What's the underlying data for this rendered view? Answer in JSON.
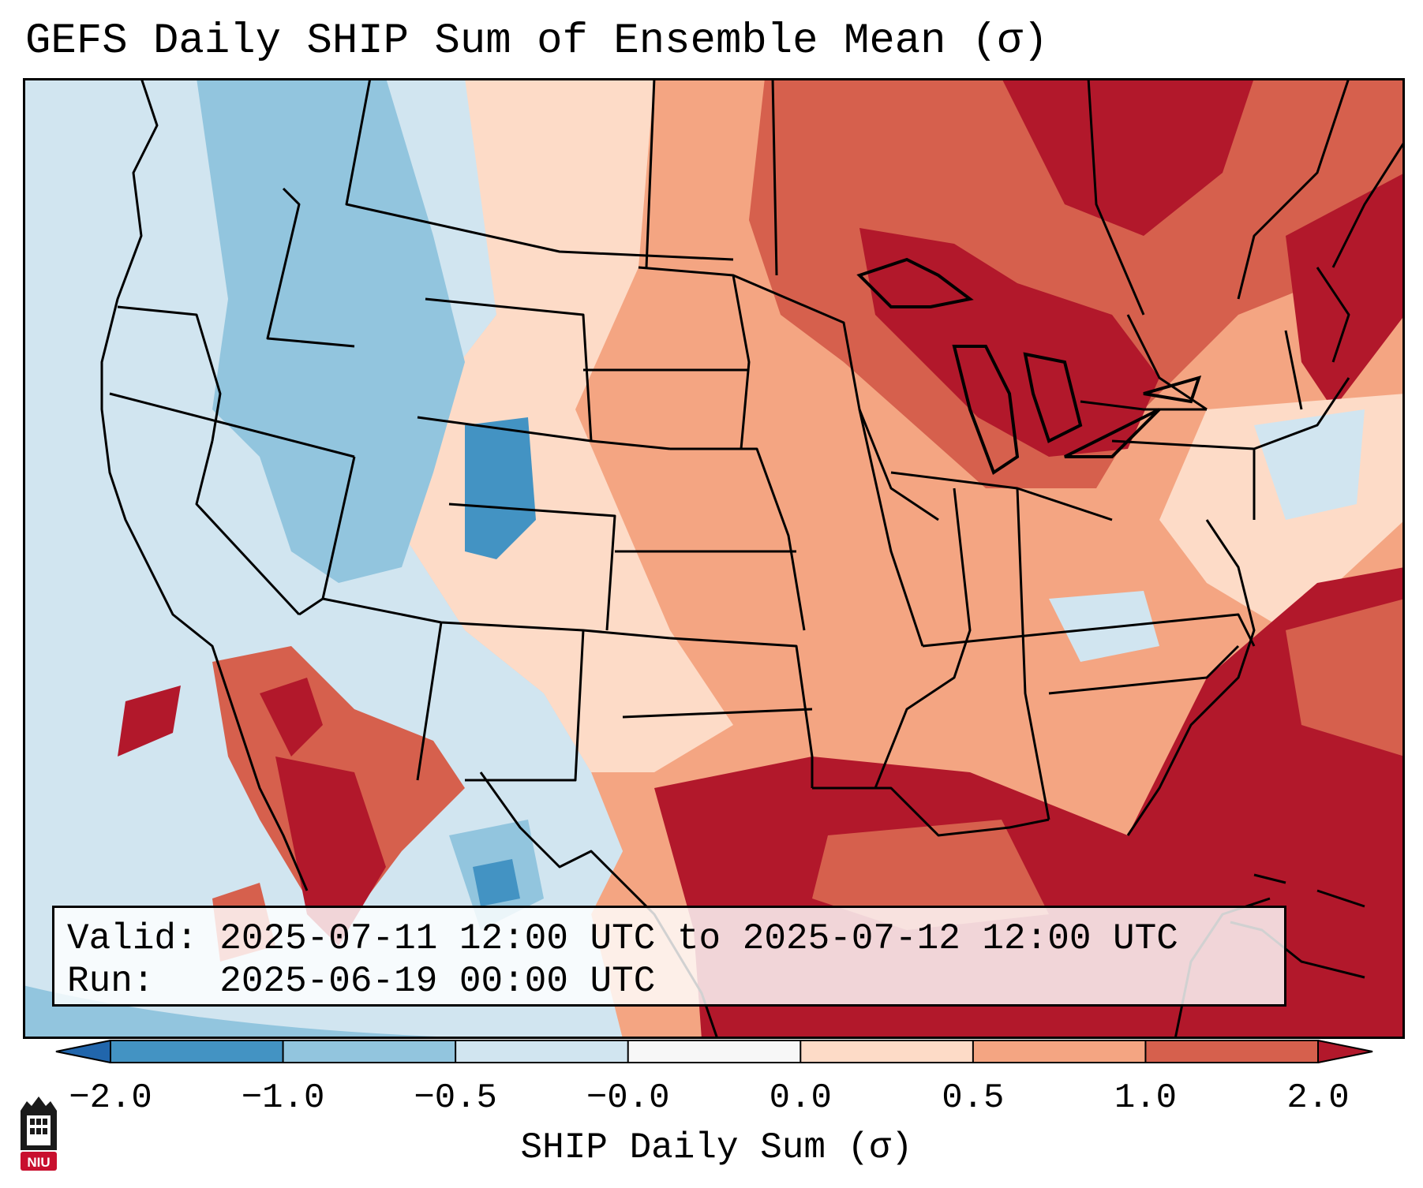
{
  "title": "GEFS Daily SHIP Sum of Ensemble Mean (σ)",
  "info": {
    "valid_label": "Valid:",
    "valid_value": "2025-07-11 12:00 UTC to 2025-07-12 12:00 UTC",
    "run_label": "Run:",
    "run_value": "2025-06-19 00:00 UTC"
  },
  "colorbar": {
    "label": "SHIP Daily Sum (σ)",
    "ticks": [
      "−2.0",
      "−1.0",
      "−0.5",
      "−0.0",
      "0.0",
      "0.5",
      "1.0",
      "2.0"
    ],
    "colors": [
      "#2166ac",
      "#4393c3",
      "#92c5de",
      "#d1e5f0",
      "#f7f7f7",
      "#fddbc7",
      "#f4a582",
      "#d6604d",
      "#b2182b"
    ],
    "extend": "both"
  },
  "logo": {
    "text": "NIU",
    "icon": "niu-logo-icon",
    "color": "#c8102e"
  }
}
